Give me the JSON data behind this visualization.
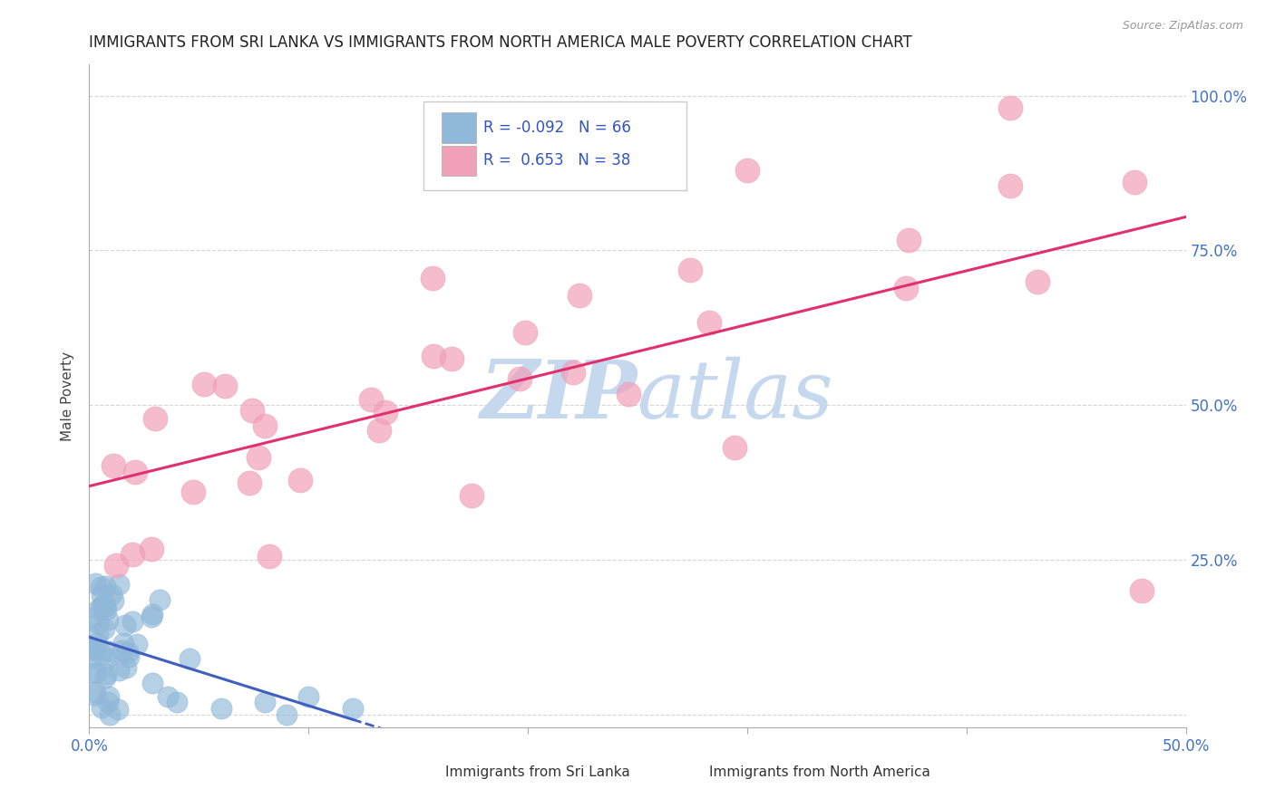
{
  "title": "IMMIGRANTS FROM SRI LANKA VS IMMIGRANTS FROM NORTH AMERICA MALE POVERTY CORRELATION CHART",
  "source": "Source: ZipAtlas.com",
  "ylabel": "Male Poverty",
  "xlim": [
    0.0,
    0.5
  ],
  "ylim": [
    -0.02,
    1.05
  ],
  "xtick_vals": [
    0.0,
    0.1,
    0.2,
    0.3,
    0.4,
    0.5
  ],
  "xticklabels": [
    "0.0%",
    "",
    "",
    "",
    "",
    "50.0%"
  ],
  "ytick_vals": [
    0.0,
    0.25,
    0.5,
    0.75,
    1.0
  ],
  "yticklabels_left": [
    "",
    "",
    "",
    "",
    ""
  ],
  "yticklabels_right": [
    "",
    "25.0%",
    "50.0%",
    "75.0%",
    "100.0%"
  ],
  "sri_lanka_R": -0.092,
  "sri_lanka_N": 66,
  "north_america_R": 0.653,
  "north_america_N": 38,
  "sri_lanka_color": "#90b8d8",
  "north_america_color": "#f0a0b8",
  "sri_lanka_line_color": "#4060c0",
  "north_america_line_color": "#e03070",
  "background_color": "#ffffff",
  "grid_color": "#cccccc",
  "title_color": "#222222",
  "axis_label_color": "#4472c4",
  "watermark_color": "#c5d8ee",
  "legend_box_color": "#cccccc"
}
